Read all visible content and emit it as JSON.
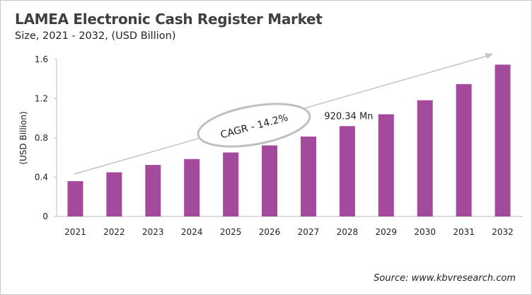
{
  "chart_data": {
    "type": "bar",
    "title": "LAMEA Electronic Cash Register Market",
    "subtitle": "Size, 2021 - 2032, (USD Billion)",
    "ylabel": "(USD Billion)",
    "xlabel": "",
    "categories": [
      "2021",
      "2022",
      "2023",
      "2024",
      "2025",
      "2026",
      "2027",
      "2028",
      "2029",
      "2030",
      "2031",
      "2032"
    ],
    "values": [
      0.36,
      0.45,
      0.525,
      0.585,
      0.652,
      0.724,
      0.814,
      0.92034,
      1.041,
      1.184,
      1.349,
      1.547
    ],
    "ylim": [
      0,
      1.6
    ],
    "yticks": [
      "0",
      "0.4",
      "0.8",
      "1.2",
      "1.6"
    ],
    "grid": false,
    "bar_color": "#a44a9c",
    "annotations": {
      "cagr": "CAGR - 14.2%",
      "value_label": "920.34 Mn",
      "value_label_category": "2028"
    },
    "source": "Source: www.kbvresearch.com"
  }
}
